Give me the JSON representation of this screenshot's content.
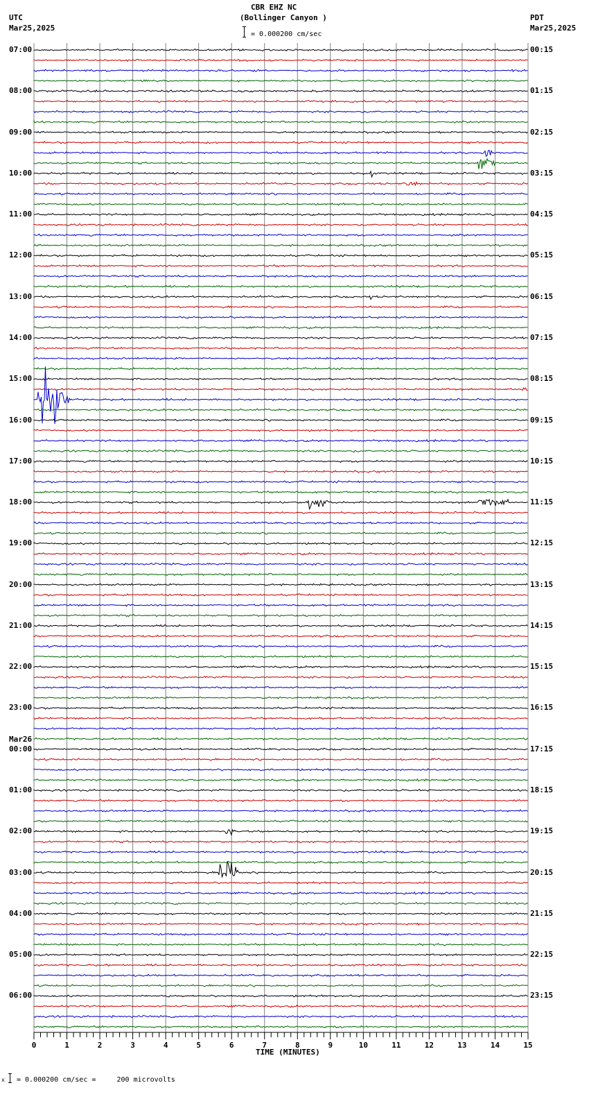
{
  "header": {
    "station": "CBR EHZ NC",
    "location": "(Bollinger Canyon )",
    "scale_text": "= 0.000200 cm/sec",
    "left_tz": "UTC",
    "left_date": "Mar25,2025",
    "right_tz": "PDT",
    "right_date": "Mar25,2025"
  },
  "footer": {
    "x_axis_title": "TIME (MINUTES)",
    "scale_note": "= 0.000200 cm/sec =     200 microvolts",
    "scale_prefix": "x"
  },
  "day_change_label": "Mar26",
  "colors": {
    "trace_cycle": [
      "#000000",
      "#cc0000",
      "#0000cc",
      "#006600"
    ],
    "grid": "#808080",
    "axis": "#000000"
  },
  "chart_data": {
    "type": "line",
    "title": "CBR EHZ NC (Bollinger Canyon ) helicorder",
    "xlabel": "TIME (MINUTES)",
    "ylabel": "",
    "xlim": [
      0,
      15
    ],
    "x_ticks": [
      0,
      1,
      2,
      3,
      4,
      5,
      6,
      7,
      8,
      9,
      10,
      11,
      12,
      13,
      14,
      15
    ],
    "minor_tick_step": 0.2,
    "grid": true,
    "traces_per_hour": 4,
    "trace_count": 96,
    "left_labels_utc": [
      "07:00",
      "08:00",
      "09:00",
      "10:00",
      "11:00",
      "12:00",
      "13:00",
      "14:00",
      "15:00",
      "16:00",
      "17:00",
      "18:00",
      "19:00",
      "20:00",
      "21:00",
      "22:00",
      "23:00",
      "00:00",
      "01:00",
      "02:00",
      "03:00",
      "04:00",
      "05:00",
      "06:00"
    ],
    "right_labels_pdt": [
      "00:15",
      "01:15",
      "02:15",
      "03:15",
      "04:15",
      "05:15",
      "06:15",
      "07:15",
      "08:15",
      "09:15",
      "10:15",
      "11:15",
      "12:15",
      "13:15",
      "14:15",
      "15:15",
      "16:15",
      "17:15",
      "18:15",
      "19:15",
      "20:15",
      "21:15",
      "22:15",
      "23:15"
    ],
    "scale": "0.000200 cm/sec = 200 microvolts",
    "events": [
      {
        "trace": 10,
        "minute": 13.6,
        "amp": 12,
        "dur": 0.3,
        "note": "spike"
      },
      {
        "trace": 11,
        "minute": 13.5,
        "amp": 16,
        "dur": 0.5,
        "note": "green spikes"
      },
      {
        "trace": 12,
        "minute": 10.2,
        "amp": 8,
        "dur": 0.1,
        "note": "spike"
      },
      {
        "trace": 13,
        "minute": 11.3,
        "amp": 5,
        "dur": 0.4,
        "note": "burst"
      },
      {
        "trace": 24,
        "minute": 10.2,
        "amp": 6,
        "dur": 0.1,
        "note": "spike"
      },
      {
        "trace": 33,
        "minute": 14.8,
        "amp": 6,
        "dur": 0.3,
        "note": "burst"
      },
      {
        "trace": 34,
        "minute": 0.1,
        "amp": 40,
        "dur": 1.0,
        "note": "large local event"
      },
      {
        "trace": 44,
        "minute": 8.3,
        "amp": 8,
        "dur": 0.8,
        "note": "burst"
      },
      {
        "trace": 44,
        "minute": 13.5,
        "amp": 9,
        "dur": 0.9,
        "note": "burst"
      },
      {
        "trace": 76,
        "minute": 5.8,
        "amp": 6,
        "dur": 0.4,
        "note": "burst"
      },
      {
        "trace": 80,
        "minute": 5.6,
        "amp": 22,
        "dur": 0.6,
        "note": "event"
      },
      {
        "trace": 82,
        "minute": 11.05,
        "amp": 5,
        "dur": 0.05,
        "note": "spike"
      }
    ]
  }
}
